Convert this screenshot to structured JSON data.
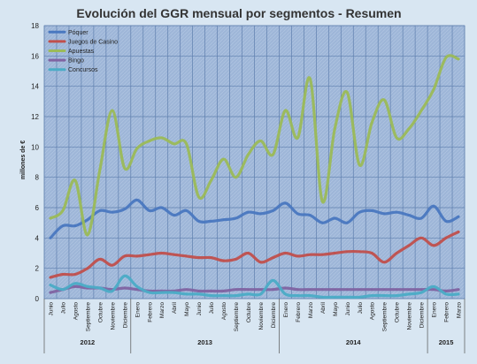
{
  "chart_data": {
    "type": "line",
    "title": "Evolución del GGR mensual por segmentos - Resumen",
    "ylabel": "millones de €",
    "ylim": [
      0,
      18
    ],
    "yticks": [
      0,
      2,
      4,
      6,
      8,
      10,
      12,
      14,
      16,
      18
    ],
    "grid": true,
    "legend_position": "top-left",
    "categories": [
      "Junio",
      "Julio",
      "Agosto",
      "Septiembre",
      "Octubre",
      "Noviembre",
      "Diciembre",
      "Enero",
      "Febrero",
      "Marzo",
      "Abril",
      "Mayo",
      "Junio",
      "Julio",
      "Agosto",
      "Septiembre",
      "Octubre",
      "Noviembre",
      "Diciembre",
      "Enero",
      "Febrero",
      "Marzo",
      "Abril",
      "Mayo",
      "Junio",
      "Julio",
      "Agosto",
      "Septiembre",
      "Octubre",
      "Noviembre",
      "Diciembre",
      "Enero",
      "Febrero",
      "Marzo"
    ],
    "year_groups": [
      {
        "label": "2012",
        "start": 0,
        "end": 6
      },
      {
        "label": "2013",
        "start": 7,
        "end": 18
      },
      {
        "label": "2014",
        "start": 19,
        "end": 30
      },
      {
        "label": "2015",
        "start": 31,
        "end": 33
      }
    ],
    "series": [
      {
        "name": "Póquer",
        "color": "#4a78c0",
        "values": [
          4.0,
          4.8,
          4.8,
          5.2,
          5.8,
          5.7,
          5.9,
          6.5,
          5.8,
          6.0,
          5.5,
          5.8,
          5.1,
          5.1,
          5.2,
          5.3,
          5.7,
          5.6,
          5.8,
          6.3,
          5.6,
          5.5,
          5.0,
          5.3,
          5.0,
          5.7,
          5.8,
          5.6,
          5.7,
          5.5,
          5.3,
          6.1,
          5.1,
          5.4
        ]
      },
      {
        "name": "Juegos de Casino",
        "color": "#c0504d",
        "values": [
          1.4,
          1.6,
          1.6,
          2.0,
          2.6,
          2.2,
          2.8,
          2.8,
          2.9,
          3.0,
          2.9,
          2.8,
          2.7,
          2.7,
          2.5,
          2.6,
          3.0,
          2.4,
          2.7,
          3.0,
          2.8,
          2.9,
          2.9,
          3.0,
          3.1,
          3.1,
          3.0,
          2.4,
          3.0,
          3.5,
          4.0,
          3.5,
          4.0,
          4.4
        ]
      },
      {
        "name": "Apuestas",
        "color": "#9bbb59",
        "values": [
          5.3,
          5.8,
          7.8,
          4.2,
          8.5,
          12.4,
          8.6,
          9.9,
          10.4,
          10.6,
          10.2,
          10.2,
          6.7,
          7.8,
          9.2,
          8.0,
          9.5,
          10.4,
          9.5,
          12.4,
          10.6,
          14.5,
          6.4,
          11.2,
          13.6,
          8.8,
          11.6,
          13.1,
          10.6,
          11.2,
          12.4,
          13.8,
          15.9,
          15.8
        ]
      },
      {
        "name": "Bingo",
        "color": "#8064a2",
        "values": [
          0.4,
          0.6,
          0.8,
          0.7,
          0.7,
          0.6,
          0.7,
          0.6,
          0.5,
          0.5,
          0.5,
          0.6,
          0.5,
          0.5,
          0.5,
          0.6,
          0.6,
          0.6,
          0.6,
          0.7,
          0.6,
          0.6,
          0.6,
          0.6,
          0.6,
          0.6,
          0.6,
          0.6,
          0.6,
          0.6,
          0.6,
          0.6,
          0.5,
          0.6
        ]
      },
      {
        "name": "Concursos",
        "color": "#4bacc6",
        "values": [
          0.9,
          0.6,
          1.0,
          0.8,
          0.7,
          0.5,
          1.5,
          0.8,
          0.4,
          0.4,
          0.4,
          0.3,
          0.3,
          0.2,
          0.2,
          0.2,
          0.3,
          0.3,
          1.2,
          0.3,
          0.2,
          0.2,
          0.1,
          0.1,
          0.1,
          0.1,
          0.2,
          0.2,
          0.2,
          0.3,
          0.4,
          0.8,
          0.3,
          0.3
        ]
      }
    ]
  }
}
